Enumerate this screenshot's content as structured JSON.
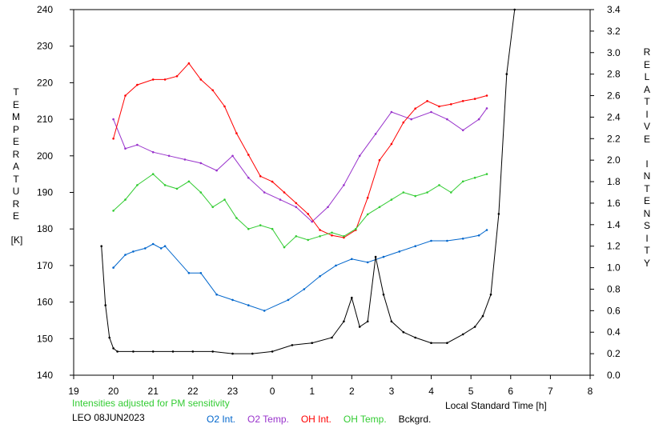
{
  "chart_data": {
    "type": "line",
    "ylabel": "TEMPERATURE",
    "yunit": "[K]",
    "y2label": "RELATIVE INTENSITY",
    "xlabel": "Local Standard Time [h]",
    "xlim": [
      19,
      32
    ],
    "ylim": [
      140,
      240
    ],
    "y2lim": [
      0,
      3.4
    ],
    "xticks": [
      {
        "v": 19,
        "label": "19"
      },
      {
        "v": 20,
        "label": "20"
      },
      {
        "v": 21,
        "label": "21"
      },
      {
        "v": 22,
        "label": "22"
      },
      {
        "v": 23,
        "label": "23"
      },
      {
        "v": 24,
        "label": "0"
      },
      {
        "v": 25,
        "label": "1"
      },
      {
        "v": 26,
        "label": "2"
      },
      {
        "v": 27,
        "label": "3"
      },
      {
        "v": 28,
        "label": "4"
      },
      {
        "v": 29,
        "label": "5"
      },
      {
        "v": 30,
        "label": "6"
      },
      {
        "v": 31,
        "label": "7"
      },
      {
        "v": 32,
        "label": "8"
      }
    ],
    "yticks": [
      140,
      150,
      160,
      170,
      180,
      190,
      200,
      210,
      220,
      230,
      240
    ],
    "y2ticks": [
      "0.0",
      "0.2",
      "0.4",
      "0.6",
      "0.8",
      "1.0",
      "1.2",
      "1.4",
      "1.6",
      "1.8",
      "2.0",
      "2.2",
      "2.4",
      "2.6",
      "2.8",
      "3.0",
      "3.2",
      "3.4"
    ],
    "series": [
      {
        "name": "O2 Int.",
        "axis": "right",
        "color": "#0066cc",
        "x": [
          20.0,
          20.3,
          20.5,
          20.8,
          21.0,
          21.2,
          21.3,
          21.9,
          22.2,
          22.6,
          23.0,
          23.4,
          23.8,
          24.4,
          24.8,
          25.2,
          25.6,
          26.0,
          26.4,
          26.8,
          27.2,
          27.6,
          28.0,
          28.4,
          28.8,
          29.2,
          29.4
        ],
        "y": [
          1.0,
          1.12,
          1.15,
          1.18,
          1.22,
          1.18,
          1.2,
          0.95,
          0.95,
          0.75,
          0.7,
          0.65,
          0.6,
          0.7,
          0.8,
          0.92,
          1.02,
          1.08,
          1.05,
          1.1,
          1.15,
          1.2,
          1.25,
          1.25,
          1.27,
          1.3,
          1.35
        ]
      },
      {
        "name": "O2 Temp.",
        "axis": "left",
        "color": "#9933cc",
        "x": [
          20.0,
          20.3,
          20.6,
          21.0,
          21.4,
          21.8,
          22.2,
          22.6,
          23.0,
          23.4,
          23.8,
          24.2,
          24.6,
          25.0,
          25.4,
          25.8,
          26.2,
          26.6,
          27.0,
          27.5,
          28.0,
          28.4,
          28.8,
          29.2,
          29.4
        ],
        "y": [
          210,
          202,
          203,
          201,
          200,
          199,
          198,
          196,
          200,
          194,
          190,
          188,
          186,
          182,
          186,
          192,
          200,
          206,
          212,
          210,
          212,
          210,
          207,
          210,
          213
        ]
      },
      {
        "name": "OH Int.",
        "axis": "right",
        "color": "#ff0000",
        "x": [
          20.0,
          20.3,
          20.6,
          21.0,
          21.3,
          21.6,
          21.9,
          22.2,
          22.5,
          22.8,
          23.1,
          23.4,
          23.7,
          24.0,
          24.3,
          24.6,
          24.9,
          25.2,
          25.5,
          25.8,
          26.1,
          26.4,
          26.7,
          27.0,
          27.3,
          27.6,
          27.9,
          28.2,
          28.5,
          28.8,
          29.1,
          29.4
        ],
        "y": [
          2.2,
          2.6,
          2.7,
          2.75,
          2.75,
          2.78,
          2.9,
          2.75,
          2.65,
          2.5,
          2.25,
          2.05,
          1.85,
          1.8,
          1.7,
          1.6,
          1.5,
          1.35,
          1.3,
          1.28,
          1.35,
          1.65,
          2.0,
          2.15,
          2.35,
          2.48,
          2.55,
          2.5,
          2.52,
          2.55,
          2.57,
          2.6
        ]
      },
      {
        "name": "OH Temp.",
        "axis": "left",
        "color": "#33cc33",
        "x": [
          20.0,
          20.3,
          20.6,
          21.0,
          21.3,
          21.6,
          21.9,
          22.2,
          22.5,
          22.8,
          23.1,
          23.4,
          23.7,
          24.0,
          24.3,
          24.6,
          24.9,
          25.2,
          25.5,
          25.8,
          26.1,
          26.4,
          26.7,
          27.0,
          27.3,
          27.6,
          27.9,
          28.2,
          28.5,
          28.8,
          29.1,
          29.4
        ],
        "y": [
          185,
          188,
          192,
          195,
          192,
          191,
          193,
          190,
          186,
          188,
          183,
          180,
          181,
          180,
          175,
          178,
          177,
          178,
          179,
          178,
          180,
          184,
          186,
          188,
          190,
          189,
          190,
          192,
          190,
          193,
          194,
          195
        ]
      },
      {
        "name": "Bckgrd.",
        "axis": "right",
        "color": "#000000",
        "x": [
          19.7,
          19.8,
          19.9,
          20.0,
          20.1,
          20.5,
          21.0,
          21.5,
          22.0,
          22.5,
          23.0,
          23.5,
          24.0,
          24.5,
          25.0,
          25.5,
          25.8,
          26.0,
          26.2,
          26.4,
          26.6,
          26.8,
          27.0,
          27.3,
          27.6,
          28.0,
          28.4,
          28.8,
          29.1,
          29.3,
          29.5,
          29.7,
          29.9,
          30.1
        ],
        "y": [
          1.2,
          0.65,
          0.35,
          0.25,
          0.22,
          0.22,
          0.22,
          0.22,
          0.22,
          0.22,
          0.2,
          0.2,
          0.22,
          0.28,
          0.3,
          0.35,
          0.5,
          0.72,
          0.45,
          0.5,
          1.1,
          0.75,
          0.5,
          0.4,
          0.35,
          0.3,
          0.3,
          0.38,
          0.45,
          0.55,
          0.75,
          1.5,
          2.8,
          3.4
        ]
      }
    ]
  },
  "footer": {
    "note": "Intensities adjusted for PM sensitivity",
    "station": "LEO 08JUN2023",
    "legend": [
      {
        "label": "O2 Int.",
        "color": "#0066cc"
      },
      {
        "label": "O2 Temp.",
        "color": "#9933cc"
      },
      {
        "label": "OH Int.",
        "color": "#ff0000"
      },
      {
        "label": "OH Temp.",
        "color": "#33cc33"
      },
      {
        "label": "Bckgrd.",
        "color": "#000000"
      }
    ]
  }
}
